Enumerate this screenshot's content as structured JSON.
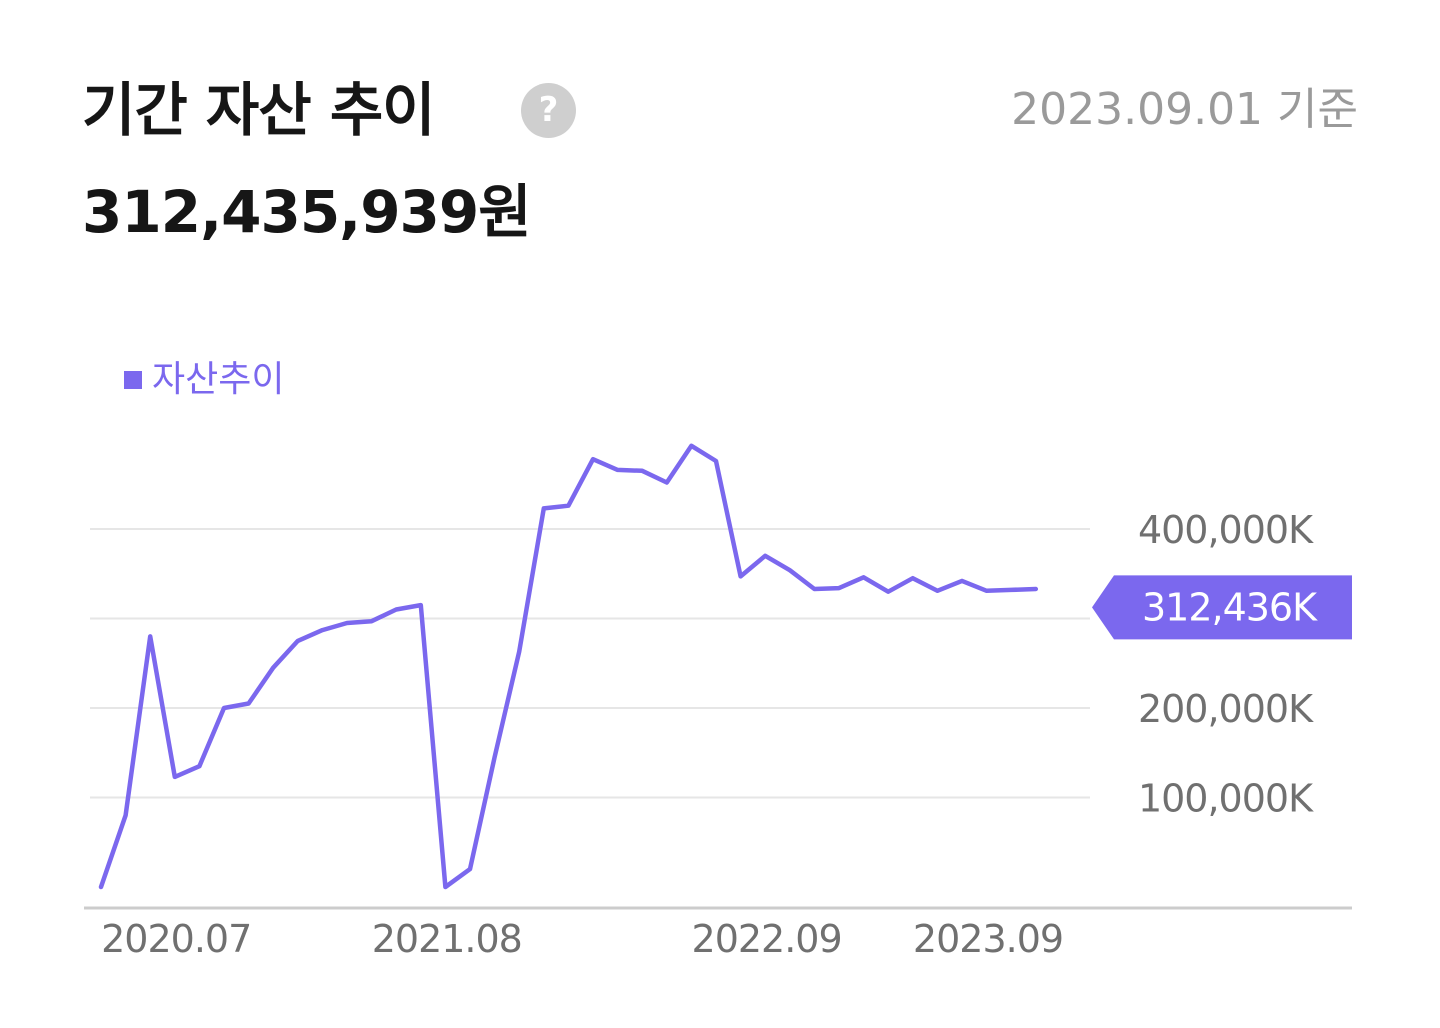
{
  "header": {
    "title": "기간 자산 추이",
    "help_icon": "question-circle-icon",
    "help_glyph": "?",
    "date_label": "2023.09.01 기준",
    "total_amount": "312,435,939원"
  },
  "colors": {
    "series": "#7b68ee",
    "badge_bg": "#7b68ee",
    "grid": "#e6e6e6",
    "axis": "#cccccc",
    "tick_text": "#707070",
    "title_text": "#161616",
    "subtle_text": "#9a9a9a"
  },
  "chart_data": {
    "type": "line",
    "legend_position": "top-left",
    "series": [
      {
        "name": "자산추이",
        "values": [
          0,
          80000,
          280000,
          123000,
          135000,
          200000,
          205000,
          245000,
          275000,
          287000,
          295000,
          297000,
          310000,
          315000,
          0,
          20000,
          145000,
          263000,
          423000,
          426000,
          478000,
          466000,
          465000,
          452000,
          493000,
          476000,
          347000,
          370000,
          354000,
          333000,
          334000,
          346000,
          330000,
          345000,
          331000,
          342000,
          331000,
          332000,
          333000
        ]
      }
    ],
    "x_tick_labels": [
      "2020.07",
      "2021.08",
      "2022.09",
      "2023.09"
    ],
    "x_tick_indices": [
      2,
      13,
      26,
      35
    ],
    "y_ticks": [
      100000,
      200000,
      400000
    ],
    "y_tick_labels": [
      "100,000K",
      "200,000K",
      "400,000K"
    ],
    "grid_lines": [
      100000,
      200000,
      300000,
      400000
    ],
    "ylim": [
      0,
      500000
    ],
    "current_value": 312435,
    "current_label": "312,436K",
    "grid": true
  }
}
